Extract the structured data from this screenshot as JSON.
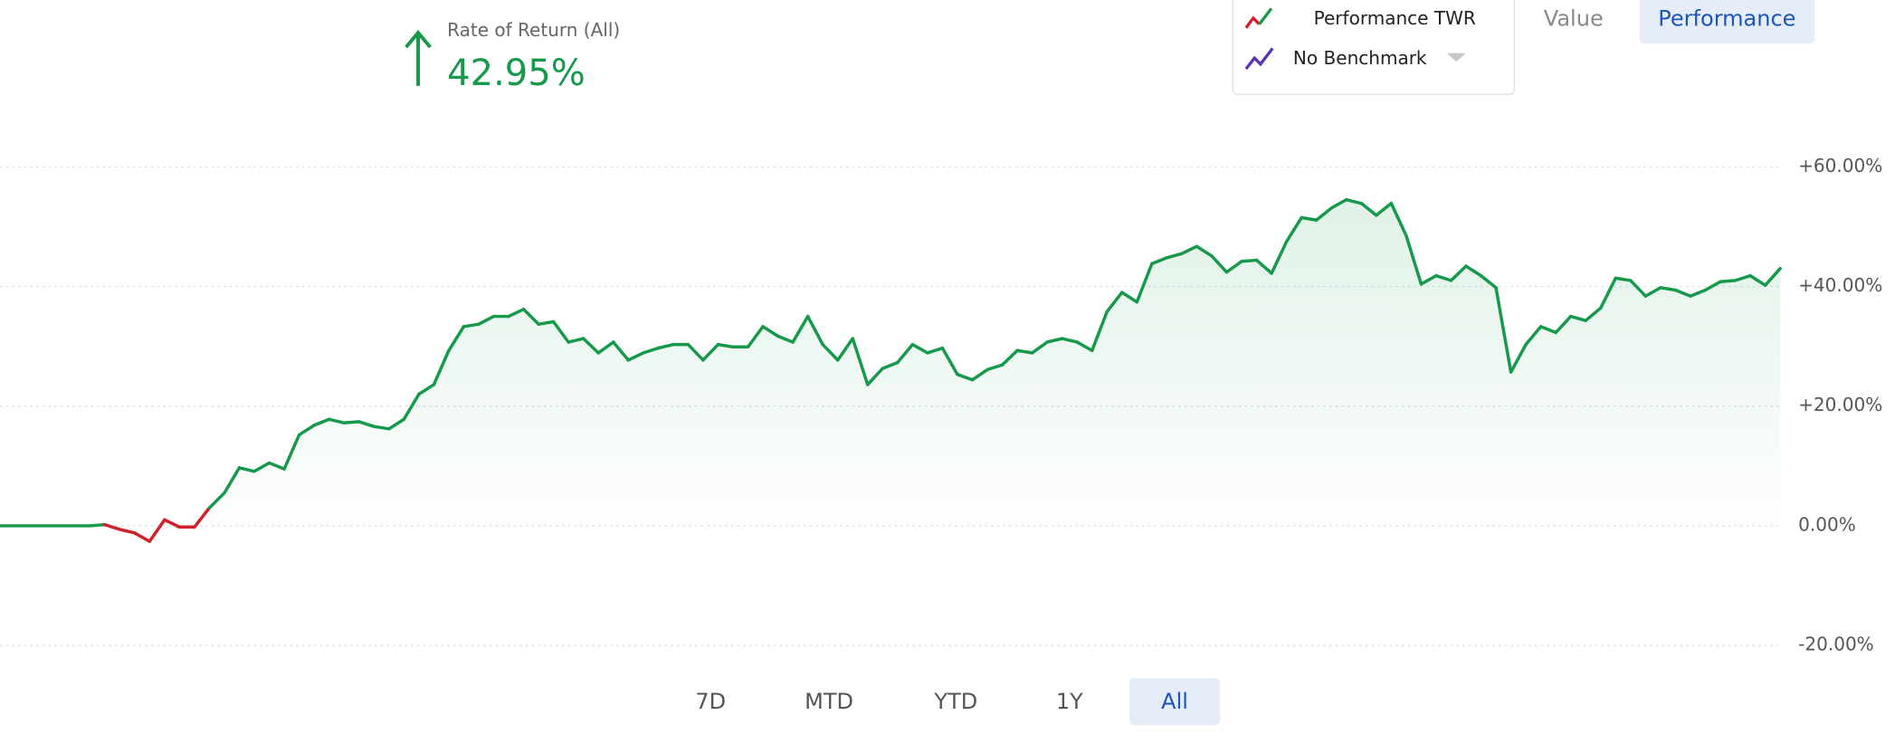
{
  "header": {
    "stat_label": "Rate of Return (All)",
    "stat_value": "42.95%"
  },
  "tabs": [
    "Value",
    "Performance"
  ],
  "active_tab": 1,
  "ranges": [
    "7D",
    "MTD",
    "YTD",
    "1Y",
    "All"
  ],
  "active_range": 4,
  "chart_data": {
    "type": "line",
    "series": [
      {
        "name": "Performance TWR",
        "color": "#16994a",
        "negative_color": "#d0202a",
        "values": [
          0,
          0,
          0,
          0,
          0,
          0,
          0,
          0.2,
          -0.6,
          -1.2,
          -2.6,
          1,
          -0.2,
          -0.2,
          3,
          5.5,
          9.7,
          9.1,
          10.5,
          9.5,
          15.2,
          16.8,
          17.8,
          17.2,
          17.4,
          16.6,
          16.2,
          17.8,
          22,
          23.6,
          29.3,
          33.3,
          33.7,
          35,
          35,
          36.2,
          33.7,
          34.1,
          30.7,
          31.3,
          28.9,
          30.7,
          27.7,
          28.9,
          29.7,
          30.3,
          30.3,
          27.7,
          30.3,
          29.9,
          29.9,
          33.3,
          31.7,
          30.7,
          35,
          30.3,
          27.7,
          31.3,
          23.6,
          26.3,
          27.3,
          30.3,
          28.9,
          29.7,
          25.3,
          24.4,
          26.1,
          26.9,
          29.3,
          28.9,
          30.7,
          31.3,
          30.7,
          29.3,
          35.8,
          39,
          37.4,
          43.8,
          44.8,
          45.5,
          46.7,
          45.1,
          42.4,
          44.2,
          44.4,
          42.2,
          47.5,
          51.5,
          51.1,
          53.1,
          54.5,
          53.9,
          51.9,
          53.9,
          48.5,
          40.4,
          41.8,
          41,
          43.4,
          41.8,
          39.8,
          25.7,
          30.3,
          33.3,
          32.3,
          35,
          34.3,
          36.4,
          41.4,
          41,
          38.4,
          39.8,
          39.4,
          38.4,
          39.4,
          40.8,
          41,
          41.8,
          40.2,
          43
        ]
      }
    ],
    "benchmark": "No Benchmark",
    "ylim": [
      -20,
      60
    ],
    "yticks": [
      {
        "value": -20,
        "label": "-20.00%"
      },
      {
        "value": 0,
        "label": "0.00%"
      },
      {
        "value": 20,
        "label": "+20.00%"
      },
      {
        "value": 40,
        "label": "+40.00%"
      },
      {
        "value": 60,
        "label": "+60.00%"
      }
    ],
    "grid": true
  }
}
